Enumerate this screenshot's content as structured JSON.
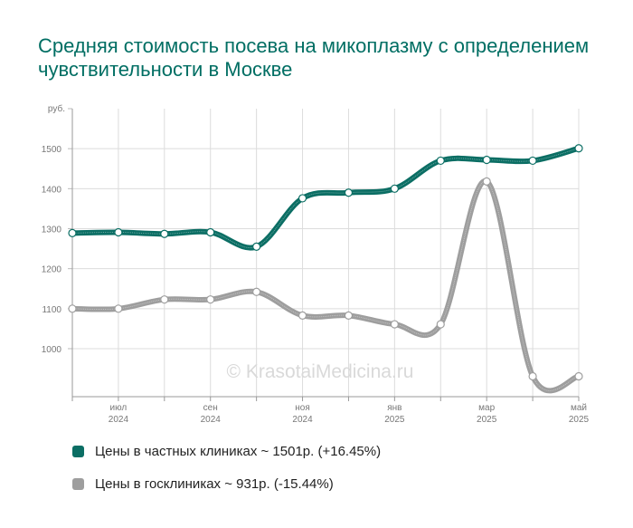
{
  "title": "Средняя стоимость посева на микоплазму с определением чувствительности в Москве",
  "watermark": "© KrasotaiMedicina.ru",
  "legend": [
    {
      "label": "Цены в частных клиниках ~ 1501р. (+16.45%)",
      "color": "#0b6e64"
    },
    {
      "label": "Цены в госклиниках ~ 931р. (-15.44%)",
      "color": "#9e9e9e"
    }
  ],
  "chart_data": {
    "type": "line",
    "ylabel": "руб.",
    "ylim": [
      880,
      1600
    ],
    "yticks": [
      1000,
      1100,
      1200,
      1300,
      1400,
      1500
    ],
    "point_count": 12,
    "xticks": [
      {
        "i": 1,
        "label": "июл",
        "year": "2024"
      },
      {
        "i": 3,
        "label": "сен",
        "year": "2024"
      },
      {
        "i": 5,
        "label": "ноя",
        "year": "2024"
      },
      {
        "i": 7,
        "label": "янв",
        "year": "2025"
      },
      {
        "i": 9,
        "label": "мар",
        "year": "2025"
      },
      {
        "i": 11,
        "label": "май",
        "year": "2025"
      }
    ],
    "series": [
      {
        "name": "Цены в частных клиниках ~ 1501р. (+16.45%)",
        "color": "#0b6e64",
        "values": [
          1289,
          1291,
          1287,
          1291,
          1255,
          1376,
          1390,
          1400,
          1470,
          1472,
          1470,
          1501
        ]
      },
      {
        "name": "Цены в госклиниках ~ 931р. (-15.44%)",
        "color": "#9e9e9e",
        "values": [
          1100,
          1100,
          1123,
          1123,
          1142,
          1083,
          1083,
          1061,
          1061,
          1418,
          931,
          931
        ]
      }
    ]
  }
}
